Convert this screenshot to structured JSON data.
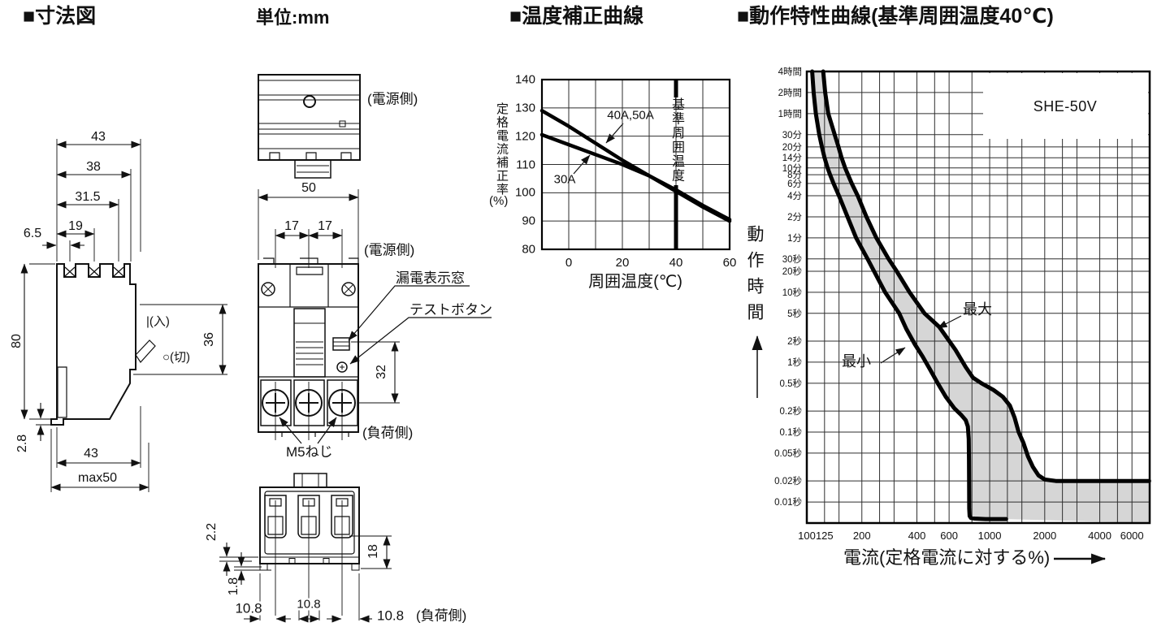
{
  "header": {
    "title_dimensions": "■寸法図",
    "unit_label": "単位:mm",
    "title_temp": "■温度補正曲線",
    "title_operating": "■動作特性曲線(基準周囲温度40℃)"
  },
  "colors": {
    "ink": "#111111",
    "band": "#d6d6d6"
  },
  "dimension_figure": {
    "side_view": {
      "dim_43_top": "43",
      "dim_38": "38",
      "dim_31_5": "31.5",
      "dim_19": "19",
      "dim_6_5": "6.5",
      "dim_80": "80",
      "dim_36": "36",
      "on_label": "|(入)",
      "off_label": "○(切)",
      "dim_2_8": "2.8",
      "dim_43_bottom": "43",
      "dim_max50": "max50"
    },
    "top_view": {
      "supply_side_label": "(電源側)"
    },
    "front_view": {
      "dim_50": "50",
      "dim_17_left": "17",
      "dim_17_right": "17",
      "supply_side_label": "(電源側)",
      "leak_window_label": "漏電表示窓",
      "test_button_label": "テストボタン",
      "dim_32": "32",
      "load_side_label": "(負荷側)",
      "screw_label": "M5ねじ"
    },
    "bottom_view": {
      "dim_2_2": "2.2",
      "dim_1_8": "1.8",
      "dim_18": "18",
      "dim_10_8_left": "10.8",
      "dim_10_8_center": "10.8",
      "dim_10_8_right": "10.8",
      "load_side_label": "(負荷側)"
    }
  },
  "chart_data": [
    {
      "type": "line",
      "title": "温度補正曲線",
      "xlabel": "周囲温度(℃)",
      "ylabel": "定格電流補正率",
      "ylabel_unit": "(%)",
      "xlim": [
        -10,
        60
      ],
      "ylim": [
        80,
        140
      ],
      "x_ticks": [
        0,
        20,
        40,
        60
      ],
      "x_grid": [
        0,
        10,
        20,
        30,
        40,
        50
      ],
      "y_ticks": [
        80,
        90,
        100,
        110,
        120,
        130,
        140
      ],
      "grid": true,
      "legend_position": "inline-annotations",
      "reference_line": {
        "x": 40,
        "label": "基準周囲温度"
      },
      "series": [
        {
          "name": "40A,50A",
          "x": [
            -10,
            0,
            10,
            20,
            30,
            40,
            50,
            60
          ],
          "values": [
            129,
            123.5,
            117.5,
            111.5,
            106,
            100.5,
            95,
            90
          ]
        },
        {
          "name": "30A",
          "x": [
            -10,
            0,
            10,
            20,
            30,
            40,
            50,
            60
          ],
          "values": [
            120.5,
            117,
            113.5,
            110,
            106,
            101,
            95.5,
            90.5
          ]
        }
      ]
    },
    {
      "type": "area",
      "model_label": "SHE-50V",
      "xlabel": "電流(定格電流に対する%)",
      "ylabel": "動作時間",
      "x_scale": "log",
      "y_scale": "log",
      "xlim": [
        100,
        7500
      ],
      "ylim_seconds": [
        0.005,
        14400
      ],
      "x_ticks": [
        100,
        125,
        200,
        400,
        600,
        1000,
        2000,
        4000,
        6000
      ],
      "x_grid": [
        125,
        150,
        200,
        250,
        300,
        400,
        500,
        600,
        800,
        1000,
        1250,
        1500,
        2000,
        2500,
        3000,
        4000,
        5000,
        6000
      ],
      "y_ticks": [
        {
          "label": "4時間",
          "s": 14400
        },
        {
          "label": "2時間",
          "s": 7200
        },
        {
          "label": "1時間",
          "s": 3600
        },
        {
          "label": "30分",
          "s": 1800
        },
        {
          "label": "20分",
          "s": 1200
        },
        {
          "label": "14分",
          "s": 840
        },
        {
          "label": "10分",
          "s": 600
        },
        {
          "label": "8分",
          "s": 480
        },
        {
          "label": "6分",
          "s": 360
        },
        {
          "label": "4分",
          "s": 240
        },
        {
          "label": "2分",
          "s": 120
        },
        {
          "label": "1分",
          "s": 60
        },
        {
          "label": "30秒",
          "s": 30
        },
        {
          "label": "20秒",
          "s": 20
        },
        {
          "label": "10秒",
          "s": 10
        },
        {
          "label": "5秒",
          "s": 5
        },
        {
          "label": "2秒",
          "s": 2
        },
        {
          "label": "1秒",
          "s": 1
        },
        {
          "label": "0.5秒",
          "s": 0.5
        },
        {
          "label": "0.2秒",
          "s": 0.2
        },
        {
          "label": "0.1秒",
          "s": 0.1
        },
        {
          "label": "0.05秒",
          "s": 0.05
        },
        {
          "label": "0.02秒",
          "s": 0.02
        },
        {
          "label": "0.01秒",
          "s": 0.01
        }
      ],
      "band_fill": "#d6d6d6",
      "series": [
        {
          "name": "最小",
          "points": [
            [
              107,
              14400
            ],
            [
              109,
              7200
            ],
            [
              112,
              3600
            ],
            [
              117,
              1800
            ],
            [
              121,
              1200
            ],
            [
              125,
              840
            ],
            [
              130,
              600
            ],
            [
              134,
              480
            ],
            [
              140,
              360
            ],
            [
              150,
              240
            ],
            [
              167,
              120
            ],
            [
              186,
              60
            ],
            [
              215,
              30
            ],
            [
              233,
              20
            ],
            [
              268,
              10
            ],
            [
              320,
              5
            ],
            [
              350,
              3
            ],
            [
              390,
              1.8
            ],
            [
              430,
              1.2
            ],
            [
              470,
              0.8
            ],
            [
              520,
              0.5
            ],
            [
              575,
              0.32
            ],
            [
              640,
              0.22
            ],
            [
              700,
              0.175
            ],
            [
              740,
              0.148
            ],
            [
              760,
              0.12
            ],
            [
              768,
              0.08
            ],
            [
              771,
              0.04
            ],
            [
              772,
              0.015
            ],
            [
              773,
              0.008
            ],
            [
              777,
              0.0063
            ],
            [
              790,
              0.0059
            ],
            [
              830,
              0.0058
            ],
            [
              950,
              0.0057
            ],
            [
              1230,
              0.0057
            ]
          ]
        },
        {
          "name": "最大",
          "points": [
            [
              123,
              14400
            ],
            [
              126,
              7200
            ],
            [
              131,
              3600
            ],
            [
              142,
              1800
            ],
            [
              149,
              1200
            ],
            [
              155,
              840
            ],
            [
              162,
              600
            ],
            [
              168,
              480
            ],
            [
              176,
              360
            ],
            [
              190,
              240
            ],
            [
              212,
              120
            ],
            [
              240,
              60
            ],
            [
              280,
              30
            ],
            [
              310,
              20
            ],
            [
              365,
              10
            ],
            [
              440,
              5
            ],
            [
              530,
              3.2
            ],
            [
              650,
              1.5
            ],
            [
              740,
              0.85
            ],
            [
              810,
              0.6
            ],
            [
              900,
              0.5
            ],
            [
              1050,
              0.4
            ],
            [
              1180,
              0.32
            ],
            [
              1290,
              0.24
            ],
            [
              1370,
              0.16
            ],
            [
              1440,
              0.1
            ],
            [
              1530,
              0.07
            ],
            [
              1620,
              0.045
            ],
            [
              1720,
              0.032
            ],
            [
              1850,
              0.024
            ],
            [
              2000,
              0.021
            ],
            [
              2300,
              0.02
            ],
            [
              7450,
              0.02
            ]
          ]
        }
      ]
    }
  ]
}
